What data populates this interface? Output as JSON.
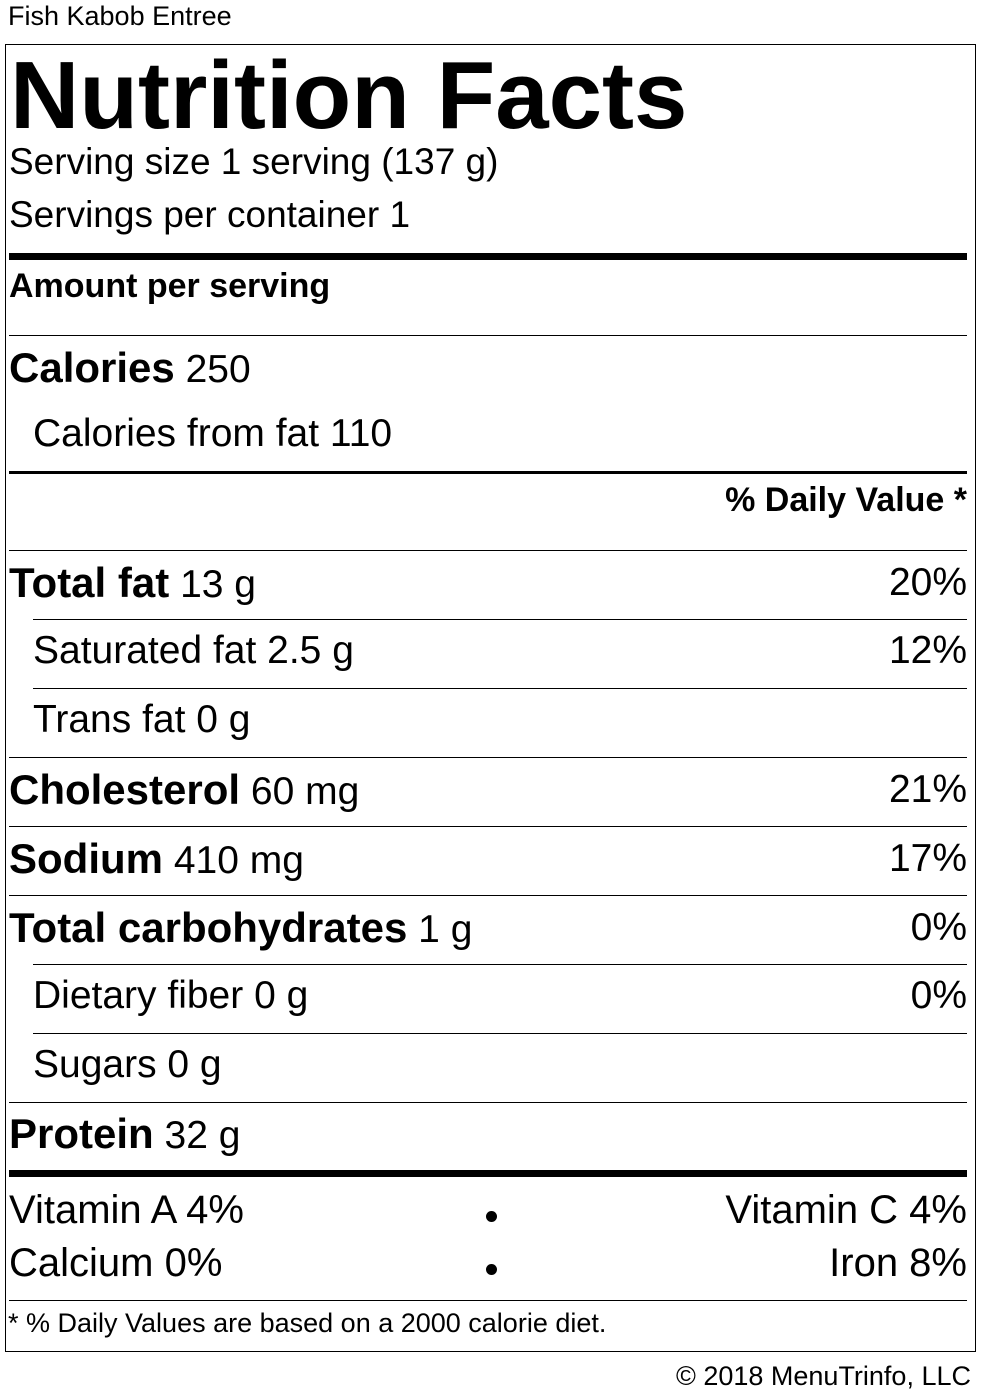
{
  "product_name": "Fish Kabob Entree",
  "title": "Nutrition Facts",
  "serving_size": "Serving size 1 serving (137 g)",
  "servings_per_container": "Servings per container 1",
  "amount_per_serving": "Amount per serving",
  "calories": {
    "label": "Calories",
    "value": "250"
  },
  "calories_from_fat": "Calories from fat 110",
  "daily_value_header": "% Daily Value *",
  "nutrients": [
    {
      "label": "Total fat",
      "amount": "13 g",
      "dv": "20%"
    },
    {
      "label": "Saturated fat 2.5 g",
      "amount": "",
      "dv": "12%"
    },
    {
      "label": "Trans fat 0 g",
      "amount": "",
      "dv": ""
    },
    {
      "label": "Cholesterol",
      "amount": "60 mg",
      "dv": "21%"
    },
    {
      "label": "Sodium",
      "amount": "410 mg",
      "dv": "17%"
    },
    {
      "label": "Total carbohydrates",
      "amount": "1 g",
      "dv": "0%"
    },
    {
      "label": "Dietary fiber 0 g",
      "amount": "",
      "dv": "0%"
    },
    {
      "label": "Sugars 0 g",
      "amount": "",
      "dv": ""
    },
    {
      "label": "Protein",
      "amount": "32 g",
      "dv": ""
    }
  ],
  "vitamins": {
    "vitamin_a": "Vitamin A 4%",
    "vitamin_c": "Vitamin C 4%",
    "calcium": "Calcium 0%",
    "iron": "Iron 8%"
  },
  "footnote": "* % Daily Values are based on a 2000 calorie diet.",
  "copyright": "© 2018 MenuTrinfo, LLC"
}
